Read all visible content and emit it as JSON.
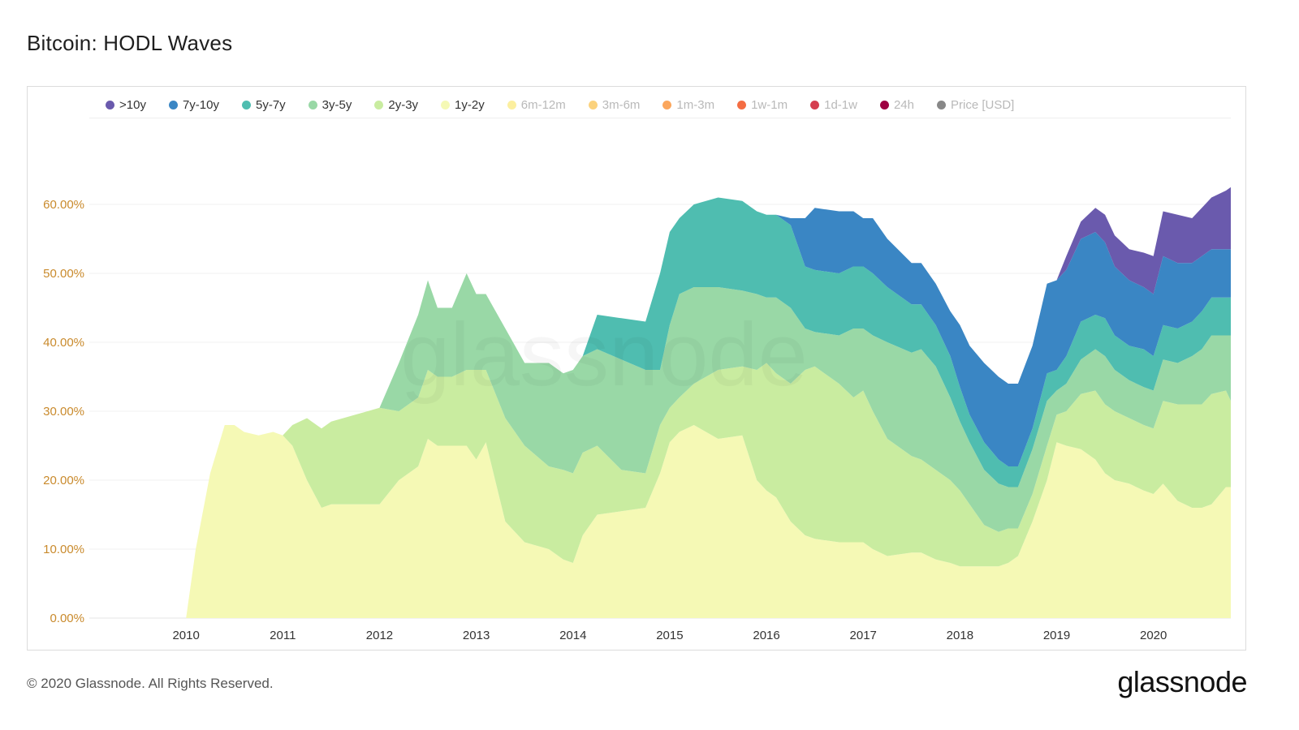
{
  "page": {
    "title": "Bitcoin: HODL Waves",
    "copyright": "© 2020 Glassnode. All Rights Reserved.",
    "logo_text": "glassnode",
    "watermark_text": "glassnode"
  },
  "legend": [
    {
      "label": ">10y",
      "color": "#6a5aad",
      "active": true
    },
    {
      "label": "7y-10y",
      "color": "#3a86c4",
      "active": true
    },
    {
      "label": "5y-7y",
      "color": "#4fbdb0",
      "active": true
    },
    {
      "label": "3y-5y",
      "color": "#99d8a6",
      "active": true
    },
    {
      "label": "2y-3y",
      "color": "#c9eca0",
      "active": true
    },
    {
      "label": "1y-2y",
      "color": "#f5f9b5",
      "active": true
    },
    {
      "label": "6m-12m",
      "color": "#fcef9f",
      "active": false
    },
    {
      "label": "3m-6m",
      "color": "#fbd27d",
      "active": false
    },
    {
      "label": "1m-3m",
      "color": "#fba65c",
      "active": false
    },
    {
      "label": "1w-1m",
      "color": "#f46d43",
      "active": false
    },
    {
      "label": "1d-1w",
      "color": "#d53e4f",
      "active": false
    },
    {
      "label": "24h",
      "color": "#9e0142",
      "active": false
    },
    {
      "label": "Price [USD]",
      "color": "#888888",
      "active": false
    }
  ],
  "chart_data": {
    "type": "area",
    "stacked": true,
    "title": "Bitcoin: HODL Waves",
    "xlabel": "",
    "ylabel": "",
    "xlim": [
      2009.0,
      2020.8
    ],
    "ylim": [
      0,
      70
    ],
    "y_ticks": [
      "0.00%",
      "10.00%",
      "20.00%",
      "30.00%",
      "40.00%",
      "50.00%",
      "60.00%"
    ],
    "y_tick_values": [
      0,
      10,
      20,
      30,
      40,
      50,
      60
    ],
    "x_ticks": [
      "2010",
      "2011",
      "2012",
      "2013",
      "2014",
      "2015",
      "2016",
      "2017",
      "2018",
      "2019",
      "2020"
    ],
    "x_tick_values": [
      2010,
      2011,
      2012,
      2013,
      2014,
      2015,
      2016,
      2017,
      2018,
      2019,
      2020
    ],
    "grid": "horizontal",
    "legend_position": "top",
    "series_order_bottom_to_top": [
      "1y-2y",
      "2y-3y",
      "3y-5y",
      "5y-7y",
      "7y-10y",
      ">10y"
    ],
    "x": [
      2010.0,
      2010.1,
      2010.25,
      2010.4,
      2010.5,
      2010.6,
      2010.75,
      2010.9,
      2011.0,
      2011.1,
      2011.25,
      2011.4,
      2011.5,
      2011.75,
      2012.0,
      2012.2,
      2012.4,
      2012.5,
      2012.6,
      2012.75,
      2012.9,
      2013.0,
      2013.1,
      2013.3,
      2013.5,
      2013.75,
      2013.9,
      2014.0,
      2014.1,
      2014.25,
      2014.5,
      2014.75,
      2014.9,
      2015.0,
      2015.1,
      2015.25,
      2015.5,
      2015.75,
      2015.9,
      2016.0,
      2016.1,
      2016.25,
      2016.4,
      2016.5,
      2016.75,
      2016.9,
      2017.0,
      2017.1,
      2017.25,
      2017.5,
      2017.6,
      2017.75,
      2017.9,
      2018.0,
      2018.1,
      2018.25,
      2018.4,
      2018.5,
      2018.6,
      2018.75,
      2018.9,
      2019.0,
      2019.1,
      2019.25,
      2019.4,
      2019.5,
      2019.6,
      2019.75,
      2019.9,
      2020.0,
      2020.1,
      2020.25,
      2020.4,
      2020.5,
      2020.6,
      2020.75,
      2020.8
    ],
    "series": [
      {
        "name": "1y-2y",
        "color": "#f5f9b5",
        "values": [
          0,
          10,
          21,
          28,
          28,
          27,
          26.5,
          27,
          26.5,
          25,
          20,
          16,
          16.5,
          16.5,
          16.5,
          20,
          22,
          26,
          25,
          25,
          25,
          23,
          25.5,
          14,
          11,
          10,
          8.5,
          8,
          12,
          15,
          15.5,
          16,
          21,
          25.5,
          27,
          28,
          26,
          26.5,
          20,
          18.5,
          17.5,
          14,
          12,
          11.5,
          11,
          11,
          11,
          10,
          9,
          9.5,
          9.5,
          8.5,
          8,
          7.5,
          7.5,
          7.5,
          7.5,
          8,
          9,
          14,
          20,
          25.5,
          25,
          24.5,
          23,
          21,
          20,
          19.5,
          18.5,
          18,
          19.5,
          17,
          16,
          16,
          16.5,
          19,
          19
        ]
      },
      {
        "name": "2y-3y",
        "color": "#c9eca0",
        "values": [
          0,
          0,
          0,
          0,
          0,
          0,
          0,
          0,
          0,
          3,
          9,
          11.5,
          12,
          13,
          14,
          10,
          10,
          10,
          10,
          10,
          11,
          13,
          10.5,
          15,
          14,
          12,
          13,
          13,
          12,
          10,
          6,
          5,
          7,
          5,
          5,
          6,
          10,
          10,
          16,
          18.5,
          18,
          20,
          24,
          25,
          23,
          21,
          22,
          20,
          17,
          14,
          13.5,
          13,
          12,
          11,
          9,
          6,
          5,
          5,
          4,
          4,
          5,
          4,
          5,
          8,
          10,
          10,
          10,
          9.5,
          9.5,
          9.5,
          12,
          14,
          15,
          15,
          16,
          14,
          12.5
        ]
      },
      {
        "name": "3y-5y",
        "color": "#99d8a6",
        "values": [
          0,
          0,
          0,
          0,
          0,
          0,
          0,
          0,
          0,
          0,
          0,
          0,
          0,
          0,
          0,
          7,
          12,
          13,
          10,
          10,
          14,
          11,
          11,
          13,
          12,
          15,
          14,
          15,
          14,
          14,
          16,
          15,
          8,
          12,
          15,
          14,
          12,
          11,
          11,
          9.5,
          11,
          11,
          6,
          5,
          7,
          10,
          9,
          11,
          14,
          15,
          16,
          15,
          12,
          10,
          9,
          8,
          7,
          6,
          6,
          6.5,
          6.5,
          3.5,
          4,
          5,
          6,
          7,
          6,
          5.5,
          5.5,
          5.5,
          6,
          6,
          7,
          8,
          8.5,
          8,
          9.5
        ]
      },
      {
        "name": "5y-7y",
        "color": "#4fbdb0",
        "values": [
          0,
          0,
          0,
          0,
          0,
          0,
          0,
          0,
          0,
          0,
          0,
          0,
          0,
          0,
          0,
          0,
          0,
          0,
          0,
          0,
          0,
          0,
          0,
          0,
          0,
          0,
          0,
          0,
          0,
          5,
          6,
          7,
          14,
          13.5,
          11,
          12,
          13,
          13,
          12,
          12,
          12,
          12,
          9,
          9,
          9,
          9,
          9,
          9,
          8,
          7,
          6.5,
          6,
          6,
          5,
          4,
          4,
          3.5,
          3,
          3,
          3,
          4,
          3,
          4,
          5.5,
          5,
          5.5,
          5,
          5,
          5.5,
          5,
          5,
          5,
          5,
          5.5,
          5.5,
          5.5,
          5.5
        ]
      },
      {
        "name": "7y-10y",
        "color": "#3a86c4",
        "values": [
          0,
          0,
          0,
          0,
          0,
          0,
          0,
          0,
          0,
          0,
          0,
          0,
          0,
          0,
          0,
          0,
          0,
          0,
          0,
          0,
          0,
          0,
          0,
          0,
          0,
          0,
          0,
          0,
          0,
          0,
          0,
          0,
          0,
          0,
          0,
          0,
          0,
          0,
          0,
          0,
          0,
          1,
          7,
          9,
          9,
          8,
          7,
          8,
          7,
          6,
          6,
          6,
          6.5,
          9,
          10,
          11.5,
          12,
          12,
          12,
          12,
          13,
          13,
          12.5,
          12,
          12,
          11,
          10,
          9.5,
          9,
          9,
          10,
          9.5,
          8.5,
          8,
          7,
          7,
          7
        ]
      },
      {
        "name": ">10y",
        "color": "#6a5aad",
        "values": [
          0,
          0,
          0,
          0,
          0,
          0,
          0,
          0,
          0,
          0,
          0,
          0,
          0,
          0,
          0,
          0,
          0,
          0,
          0,
          0,
          0,
          0,
          0,
          0,
          0,
          0,
          0,
          0,
          0,
          0,
          0,
          0,
          0,
          0,
          0,
          0,
          0,
          0,
          0,
          0,
          0,
          0,
          0,
          0,
          0,
          0,
          0,
          0,
          0,
          0,
          0,
          0,
          0,
          0,
          0,
          0,
          0,
          0,
          0,
          0,
          0,
          0,
          2,
          2.5,
          3.5,
          4,
          4.5,
          4.5,
          5,
          5.5,
          6.5,
          7,
          6.5,
          7,
          7.5,
          8.5,
          9
        ]
      }
    ]
  }
}
